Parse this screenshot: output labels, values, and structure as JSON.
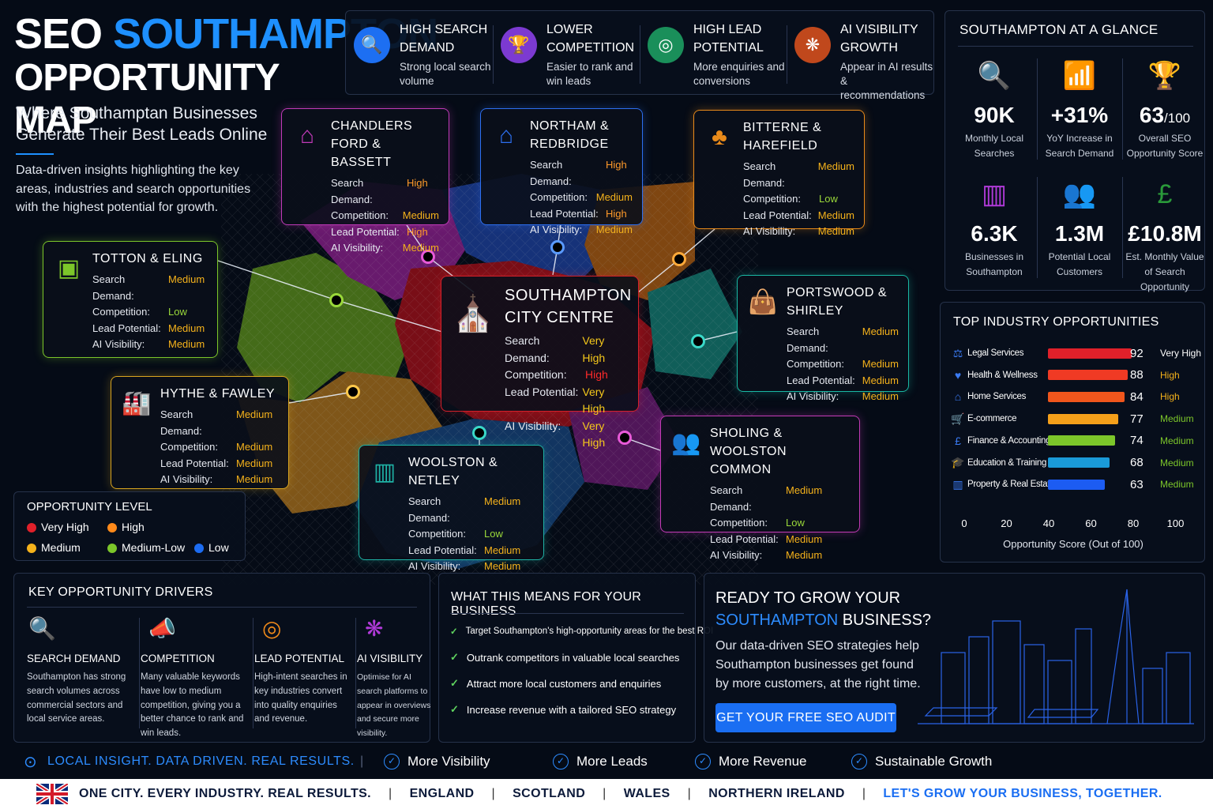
{
  "title": {
    "line1_white": "SEO",
    "line1_blue": "SOUTHAMPTON",
    "line2": "OPPORTUNITY MAP"
  },
  "subtitle": "Where Southamptan Businesses Generate Their Best Leads Online",
  "intro": "Data-driven insights highlighting the key areas, industries and search opportunities with the highest potential for growth.",
  "colors": {
    "accent": "#1e90ff",
    "very_high": "#e0202a",
    "high": "#ff8a1a",
    "medium": "#f5b21b",
    "medium_low": "#7cc62a",
    "low": "#1c6cf2"
  },
  "top_features": [
    {
      "icon": "search-chart-icon",
      "title": "HIGH SEARCH DEMAND",
      "desc": "Strong local search volume",
      "color": "#1d6ff2"
    },
    {
      "icon": "trophy-icon",
      "title": "LOWER COMPETITION",
      "desc": "Easier to rank and win leads",
      "color": "#7c3ad1"
    },
    {
      "icon": "target-icon",
      "title": "HIGH LEAD POTENTIAL",
      "desc": "More enquiries and conversions",
      "color": "#1a8f5a"
    },
    {
      "icon": "brain-icon",
      "title": "AI VISIBILITY GROWTH",
      "desc": "Appear in AI results & recommendations",
      "color": "#c0481c"
    }
  ],
  "labels": {
    "search_demand": "Search Demand:",
    "competition": "Competition:",
    "lead_potential": "Lead Potential:",
    "ai_visibility": "AI Visibility:"
  },
  "areas": [
    {
      "id": "chandlers",
      "name": "CHANDLERS FORD & BASSETT",
      "icon": "house-icon",
      "border": "#c03ab8",
      "values": [
        "High",
        "Medium",
        "High",
        "Medium"
      ]
    },
    {
      "id": "northam",
      "name": "NORTHAM & REDBRIDGE",
      "icon": "house-icon",
      "border": "#2d6ff0",
      "values": [
        "High",
        "Medium",
        "High",
        "Medium"
      ]
    },
    {
      "id": "bitterne",
      "name": "BITTERNE & HAREFIELD",
      "icon": "tree-icon",
      "border": "#e88a1a",
      "values": [
        "Medium",
        "Low",
        "Medium",
        "Medium"
      ]
    },
    {
      "id": "totton",
      "name": "TOTTON & ELING",
      "icon": "train-icon",
      "border": "#7cc62a",
      "values": [
        "Medium",
        "Low",
        "Medium",
        "Medium"
      ]
    },
    {
      "id": "city",
      "name": "SOUTHAMPTON CITY CENTRE",
      "icon": "cathedral-icon",
      "border": "#d4202a",
      "values": [
        "Very High",
        "High",
        "Very High",
        "Very High"
      ]
    },
    {
      "id": "portswood",
      "name": "PORTSWOOD & SHIRLEY",
      "icon": "shopping-bag-icon",
      "border": "#19b8a4",
      "values": [
        "Medium",
        "Medium",
        "Medium",
        "Medium"
      ]
    },
    {
      "id": "hythe",
      "name": "HYTHE & FAWLEY",
      "icon": "factory-icon",
      "border": "#d9a520",
      "values": [
        "Medium",
        "Medium",
        "Medium",
        "Medium"
      ]
    },
    {
      "id": "woolston",
      "name": "WOOLSTON & NETLEY",
      "icon": "buildings-icon",
      "border": "#1fb3a6",
      "values": [
        "Medium",
        "Low",
        "Medium",
        "Medium"
      ]
    },
    {
      "id": "sholing",
      "name": "SHOLING & WOOLSTON COMMON",
      "icon": "people-icon",
      "border": "#c33ab6",
      "values": [
        "Medium",
        "Low",
        "Medium",
        "Medium"
      ]
    }
  ],
  "legend": {
    "title": "OPPORTUNITY LEVEL",
    "items": [
      {
        "label": "Very High",
        "color": "#e0202a"
      },
      {
        "label": "High",
        "color": "#ff8a1a"
      },
      {
        "label": "Medium",
        "color": "#f5b21b"
      },
      {
        "label": "Medium-Low",
        "color": "#7cc62a"
      },
      {
        "label": "Low",
        "color": "#1c6cf2"
      }
    ]
  },
  "glance": {
    "title": "SOUTHAMPTON AT A GLANCE",
    "stats": [
      {
        "icon": "search-chart-icon",
        "value": "90K",
        "unit": "",
        "label": "Monthly Local Searches",
        "color": "#2d6ff0"
      },
      {
        "icon": "growth-chart-icon",
        "value": "+31%",
        "unit": "",
        "label": "YoY Increase in Search Demand",
        "color": "#7cc62a"
      },
      {
        "icon": "trophy-icon",
        "value": "63",
        "unit": "/100",
        "label": "Overall SEO Opportunity Score",
        "color": "#f08a1a"
      },
      {
        "icon": "buildings-icon",
        "value": "6.3K",
        "unit": "",
        "label": "Businesses in Southampton",
        "color": "#b03ad8"
      },
      {
        "icon": "people-icon",
        "value": "1.3M",
        "unit": "",
        "label": "Potential Local Customers",
        "color": "#2d6ff0"
      },
      {
        "icon": "pound-icon",
        "value": "£10.8M",
        "unit": "",
        "label": "Est. Monthly Value of Search Opportunity",
        "color": "#2a9a3a"
      }
    ]
  },
  "industries": {
    "title": "TOP INDUSTRY OPPORTUNITIES",
    "axis_title": "Opportunity Score (Out of 100)",
    "ticks": [
      "0",
      "20",
      "40",
      "60",
      "80",
      "100"
    ]
  },
  "chart_data": {
    "type": "bar",
    "orientation": "horizontal",
    "title": "TOP INDUSTRY OPPORTUNITIES",
    "xlabel": "Opportunity Score (Out of 100)",
    "xlim": [
      0,
      100
    ],
    "categories": [
      "Legal Services",
      "Health & Wellness",
      "Home Services",
      "E-commerce",
      "Finance & Accounting",
      "Education & Training",
      "Property & Real Estate"
    ],
    "values": [
      92,
      88,
      84,
      77,
      74,
      68,
      63
    ],
    "levels": [
      "Very High",
      "High",
      "High",
      "Medium",
      "Medium",
      "Medium",
      "Medium"
    ],
    "bar_colors": [
      "#e0202a",
      "#f03a24",
      "#f0561c",
      "#f5a01a",
      "#7cc62a",
      "#1a9ad8",
      "#1c5cf2"
    ],
    "level_colors": [
      "#ffffff",
      "#f5b21b",
      "#f5b21b",
      "#7cc62a",
      "#7cc62a",
      "#7cc62a",
      "#7cc62a"
    ],
    "icons": [
      "scales-icon",
      "heart-icon",
      "house-icon",
      "cart-icon",
      "pound-coin-icon",
      "graduation-cap-icon",
      "buildings-icon"
    ]
  },
  "drivers": {
    "title": "KEY OPPORTUNITY DRIVERS",
    "items": [
      {
        "icon": "search-chart-icon",
        "title": "SEARCH DEMAND",
        "desc": "Southampton has strong search volumes across commercial sectors and local service areas.",
        "color": "#2d6ff0"
      },
      {
        "icon": "megaphone-icon",
        "title": "COMPETITION",
        "desc": "Many valuable keywords have low to medium competition, giving you a better chance to rank and win leads.",
        "color": "#7cc62a"
      },
      {
        "icon": "target-icon",
        "title": "LEAD POTENTIAL",
        "desc": "High-intent searches in key industries convert into quality enquiries and revenue.",
        "color": "#f08a1a"
      },
      {
        "icon": "brain-icon",
        "title": "AI VISIBILITY",
        "desc": "Optimise for AI search platforms to appear in overviews and secure more visibility.",
        "color": "#b03ad8"
      }
    ]
  },
  "means": {
    "title": "WHAT THIS MEANS FOR YOUR BUSINESS",
    "items": [
      "Target Southampton's high-opportunity areas for the best ROI",
      "Outrank competitors in valuable local searches",
      "Attract more local customers and enquiries",
      "Increase revenue with a tailored SEO strategy"
    ]
  },
  "cta": {
    "line1": "READY TO GROW YOUR",
    "line2_blue": "SOUTHAMPTON",
    "line2_rest": "BUSINESS?",
    "desc": "Our data-driven SEO strategies help Southampton businesses get found by more customers, at the right time.",
    "button": "GET YOUR FREE SEO AUDIT"
  },
  "tagline": "LOCAL INSIGHT. DATA DRIVEN. REAL RESULTS.",
  "benefits": [
    "More Visibility",
    "More Leads",
    "More Revenue",
    "Sustainable Growth"
  ],
  "footer": {
    "slogan": "ONE CITY. EVERY INDUSTRY. REAL RESULTS.",
    "regions": [
      "ENGLAND",
      "SCOTLAND",
      "WALES",
      "NORTHERN IRELAND"
    ],
    "closing": "LET'S GROW YOUR BUSINESS, TOGETHER."
  }
}
